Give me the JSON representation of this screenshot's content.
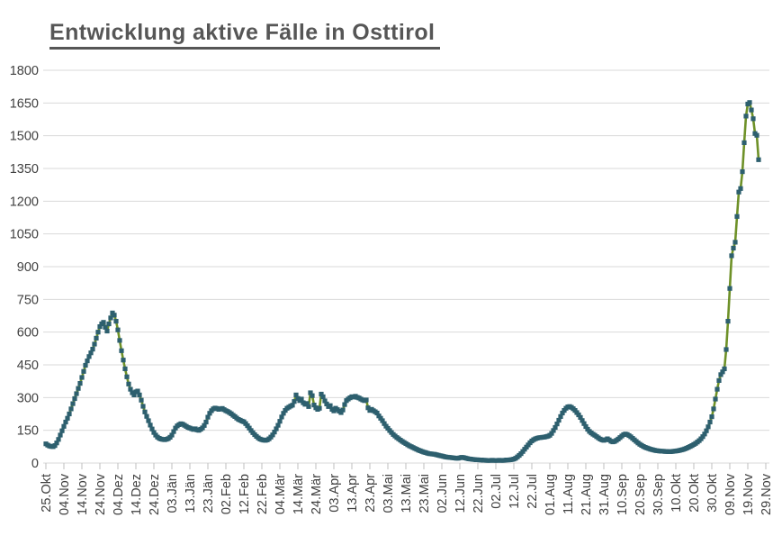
{
  "title": "Entwicklung aktive Fälle in Osttirol",
  "colors": {
    "line": "#6e9128",
    "marker": "#2d5f6e",
    "grid": "#d9d9d9",
    "tick": "#bfbfbf",
    "axis_text": "#404040",
    "title_text": "#565656"
  },
  "chart_data": {
    "type": "line",
    "title": "Entwicklung aktive Fälle in Osttirol",
    "xlabel": "",
    "ylabel": "",
    "ylim": [
      0,
      1800
    ],
    "y_ticks": [
      0,
      150,
      300,
      450,
      600,
      750,
      900,
      1050,
      1200,
      1350,
      1500,
      1650,
      1800
    ],
    "grid": "horizontal",
    "legend": "none",
    "x_tick_labels": [
      "25.Okt",
      "04.Nov",
      "14.Nov",
      "24.Nov",
      "04.Dez",
      "14.Dez",
      "24.Dez",
      "03.Jän",
      "13.Jän",
      "23.Jän",
      "02.Feb",
      "12.Feb",
      "22.Feb",
      "04.Mär",
      "14.Mär",
      "24.Mär",
      "03.Apr",
      "13.Apr",
      "23.Apr",
      "03.Mai",
      "13.Mai",
      "23.Mai",
      "02.Jun",
      "12.Jun",
      "22.Jun",
      "02.Jul",
      "12.Jul",
      "22.Jul",
      "01.Aug",
      "11.Aug",
      "21.Aug",
      "31.Aug",
      "10.Sep",
      "20.Sep",
      "30.Sep",
      "10.Okt",
      "20.Okt",
      "30.Okt",
      "09.Nov",
      "19.Nov",
      "29.Nov"
    ],
    "x_tick_interval_days": 10,
    "x_axis_total_days": 400,
    "marker": "square",
    "values_are_daily_from_first_tick": true,
    "values": [
      88,
      82,
      78,
      76,
      75,
      80,
      92,
      108,
      128,
      148,
      168,
      188,
      205,
      225,
      248,
      272,
      295,
      318,
      342,
      365,
      392,
      420,
      448,
      468,
      488,
      505,
      522,
      545,
      572,
      600,
      625,
      638,
      645,
      622,
      605,
      638,
      665,
      688,
      678,
      650,
      610,
      562,
      515,
      472,
      432,
      395,
      362,
      338,
      322,
      312,
      326,
      330,
      312,
      288,
      260,
      234,
      214,
      194,
      174,
      156,
      140,
      128,
      119,
      113,
      110,
      108,
      107,
      109,
      112,
      118,
      128,
      144,
      160,
      170,
      176,
      180,
      178,
      173,
      168,
      163,
      160,
      157,
      154,
      157,
      152,
      150,
      155,
      161,
      172,
      188,
      210,
      228,
      240,
      248,
      252,
      250,
      246,
      248,
      250,
      245,
      240,
      236,
      231,
      226,
      219,
      213,
      206,
      200,
      196,
      192,
      189,
      181,
      171,
      160,
      149,
      139,
      130,
      122,
      115,
      110,
      107,
      105,
      104,
      106,
      111,
      119,
      129,
      142,
      157,
      173,
      191,
      211,
      228,
      241,
      251,
      256,
      261,
      265,
      282,
      312,
      296,
      286,
      293,
      276,
      269,
      273,
      259,
      322,
      309,
      266,
      253,
      246,
      251,
      316,
      304,
      285,
      271,
      259,
      263,
      246,
      239,
      251,
      245,
      238,
      231,
      243,
      268,
      286,
      293,
      299,
      304,
      302,
      306,
      301,
      298,
      293,
      289,
      286,
      289,
      253,
      241,
      246,
      240,
      235,
      229,
      216,
      205,
      194,
      181,
      169,
      159,
      149,
      140,
      131,
      124,
      117,
      111,
      105,
      99,
      94,
      89,
      84,
      79,
      75,
      71,
      67,
      63,
      59,
      56,
      53,
      50,
      48,
      45,
      43,
      42,
      41,
      40,
      38,
      36,
      34,
      32,
      30,
      28,
      27,
      26,
      25,
      24,
      23,
      22,
      22,
      24,
      26,
      25,
      23,
      21,
      19,
      18,
      17,
      16,
      15,
      15,
      14,
      14,
      13,
      13,
      12,
      12,
      12,
      13,
      12,
      12,
      12,
      13,
      12,
      12,
      13,
      14,
      14,
      15,
      16,
      18,
      22,
      28,
      35,
      43,
      53,
      63,
      73,
      83,
      93,
      101,
      107,
      111,
      114,
      116,
      117,
      118,
      119,
      121,
      123,
      127,
      136,
      149,
      163,
      179,
      196,
      213,
      229,
      241,
      251,
      257,
      259,
      255,
      249,
      241,
      231,
      221,
      209,
      195,
      181,
      167,
      155,
      145,
      138,
      132,
      127,
      121,
      115,
      110,
      106,
      104,
      107,
      111,
      106,
      100,
      97,
      99,
      104,
      110,
      117,
      124,
      130,
      133,
      131,
      126,
      120,
      113,
      106,
      99,
      92,
      86,
      81,
      76,
      72,
      69,
      66,
      63,
      61,
      59,
      57,
      56,
      55,
      54,
      54,
      53,
      53,
      52,
      52,
      53,
      54,
      55,
      56,
      58,
      60,
      62,
      65,
      68,
      72,
      76,
      80,
      85,
      90,
      96,
      103,
      111,
      121,
      133,
      148,
      166,
      188,
      212,
      248,
      293,
      338,
      378,
      405,
      418,
      432,
      520,
      650,
      800,
      950,
      985,
      1012,
      1130,
      1242,
      1258,
      1335,
      1468,
      1590,
      1645,
      1652,
      1618,
      1578,
      1510,
      1502,
      1390
    ]
  }
}
